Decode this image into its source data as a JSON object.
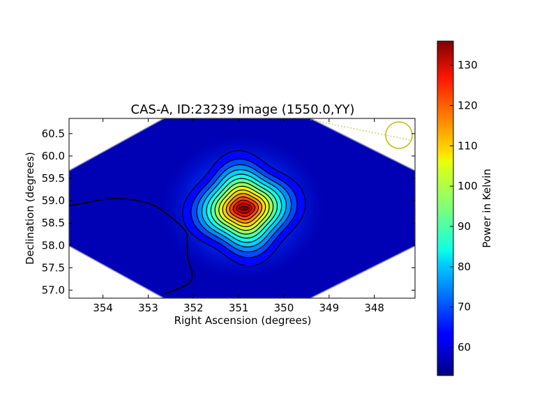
{
  "chart_data": {
    "type": "heatmap",
    "title": "CAS-A, ID:23239 image (1550.0,YY)",
    "xlabel": "Right Ascension (degrees)",
    "ylabel": "Declination (degrees)",
    "xlim": [
      354.75,
      347.1
    ],
    "ylim": [
      56.82,
      60.84
    ],
    "xticks": [
      354,
      353,
      352,
      351,
      350,
      349,
      348
    ],
    "yticks": [
      57.0,
      57.5,
      58.0,
      58.5,
      59.0,
      59.5,
      60.0,
      60.5
    ],
    "xtick_labels": [
      "354",
      "353",
      "352",
      "351",
      "350",
      "349",
      "348"
    ],
    "ytick_labels": [
      "57.0",
      "57.5",
      "58.0",
      "58.5",
      "59.0",
      "59.5",
      "60.0",
      "60.5"
    ],
    "colormap": "jet",
    "peak": {
      "ra": 350.88,
      "dec": 58.83,
      "value": 136
    },
    "background_value": 54,
    "contour_levels": 14,
    "beam_marker": {
      "ra": 347.5,
      "dec": 60.47,
      "color": "#bcbc0a"
    },
    "colorbar": {
      "label": "Power in Kelvin",
      "range": [
        53,
        136
      ],
      "ticks": [
        60,
        70,
        80,
        90,
        100,
        110,
        120,
        130
      ],
      "tick_labels": [
        "60",
        "70",
        "80",
        "90",
        "100",
        "110",
        "120",
        "130"
      ]
    }
  }
}
